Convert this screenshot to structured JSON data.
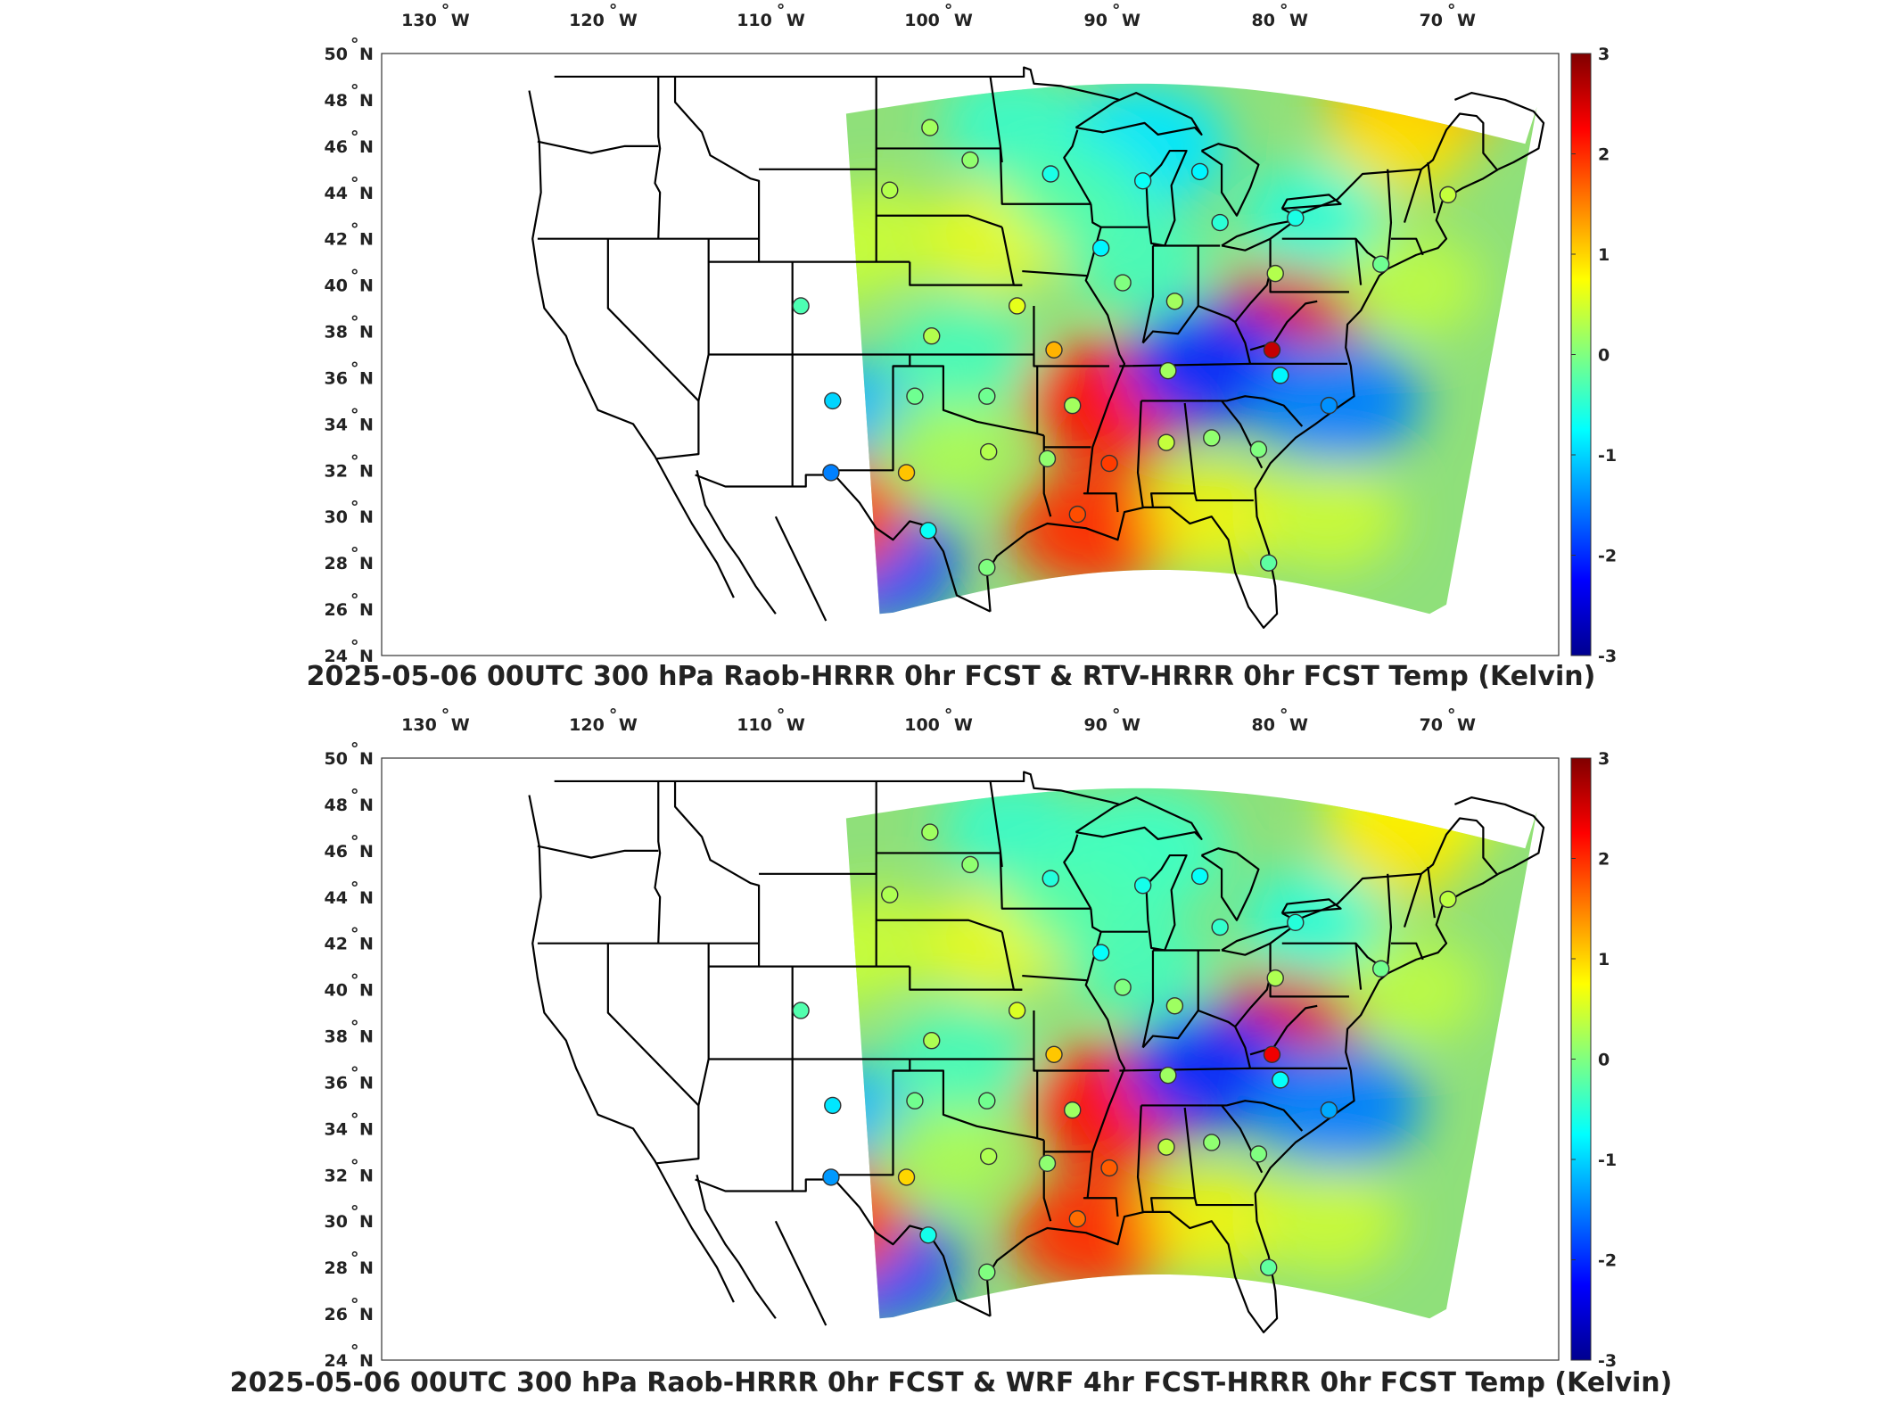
{
  "panels": [
    {
      "title": "2025-05-06 00UTC 300 hPa Raob-HRRR 0hr FCST & RTV-HRRR 0hr FCST Temp (Kelvin)",
      "top": 0,
      "variant": "a"
    },
    {
      "title": "2025-05-06 00UTC 300 hPa Raob-HRRR 0hr FCST & WRF 4hr FCST-HRRR 0hr FCST Temp (Kelvin)",
      "top": 790,
      "variant": "b"
    }
  ],
  "lon_ticks": [
    {
      "deg": "130",
      "hemi": "W"
    },
    {
      "deg": "120",
      "hemi": "W"
    },
    {
      "deg": "110",
      "hemi": "W"
    },
    {
      "deg": "100",
      "hemi": "W"
    },
    {
      "deg": "90",
      "hemi": "W"
    },
    {
      "deg": "80",
      "hemi": "W"
    },
    {
      "deg": "70",
      "hemi": "W"
    }
  ],
  "lat_ticks": [
    {
      "deg": "50",
      "hemi": "N"
    },
    {
      "deg": "48",
      "hemi": "N"
    },
    {
      "deg": "46",
      "hemi": "N"
    },
    {
      "deg": "44",
      "hemi": "N"
    },
    {
      "deg": "42",
      "hemi": "N"
    },
    {
      "deg": "40",
      "hemi": "N"
    },
    {
      "deg": "38",
      "hemi": "N"
    },
    {
      "deg": "36",
      "hemi": "N"
    },
    {
      "deg": "34",
      "hemi": "N"
    },
    {
      "deg": "32",
      "hemi": "N"
    },
    {
      "deg": "30",
      "hemi": "N"
    },
    {
      "deg": "28",
      "hemi": "N"
    },
    {
      "deg": "26",
      "hemi": "N"
    },
    {
      "deg": "24",
      "hemi": "N"
    }
  ],
  "colorbar": {
    "ticks": [
      "3",
      "2",
      "1",
      "0",
      "-1",
      "-2",
      "-3"
    ],
    "range": [
      -3,
      3
    ],
    "colormap": [
      "#00008f",
      "#0000ff",
      "#0080ff",
      "#00ffff",
      "#80ff80",
      "#ffff00",
      "#ff8000",
      "#ff0000",
      "#800000"
    ]
  },
  "field": {
    "base_color": "#8fe07a",
    "anomalies": [
      {
        "name": "mississippi-valley-warm",
        "lon": -90,
        "lat": 35,
        "value": 2.2
      },
      {
        "name": "gulf-coast-warm",
        "lon": -91,
        "lat": 29.5,
        "value": 2.0
      },
      {
        "name": "virginia-warm",
        "lon": -80,
        "lat": 38,
        "value": 2.4
      },
      {
        "name": "appalachia-cold",
        "lon": -84,
        "lat": 36.5,
        "value": -2.0
      },
      {
        "name": "mid-atlantic-coast-cold",
        "lon": -76.5,
        "lat": 35,
        "value": -1.5
      },
      {
        "name": "new-mexico-cold",
        "lon": -106,
        "lat": 34,
        "value": -1.2
      },
      {
        "name": "west-texas-cold",
        "lon": -104,
        "lat": 28,
        "value": -1.8
      },
      {
        "name": "texas-big-bend-warm",
        "lon": -107,
        "lat": 30,
        "value": 1.8
      },
      {
        "name": "great-lakes-cool",
        "lon": -88,
        "lat": 46,
        "value": -0.9
      },
      {
        "name": "quebec-warm",
        "lon": -72,
        "lat": 48,
        "value": 1.2
      }
    ]
  },
  "stations": [
    {
      "lon": -100.8,
      "lat": 46.8,
      "value": 0.2
    },
    {
      "lon": -98.4,
      "lat": 45.4,
      "value": 0.1
    },
    {
      "lon": -103.2,
      "lat": 44.1,
      "value": 0.3
    },
    {
      "lon": -93.6,
      "lat": 44.8,
      "value": -0.6
    },
    {
      "lon": -88.1,
      "lat": 44.5,
      "value": -0.7
    },
    {
      "lon": -84.7,
      "lat": 44.9,
      "value": -0.8
    },
    {
      "lon": -69.9,
      "lat": 43.9,
      "value": 0.4
    },
    {
      "lon": -83.5,
      "lat": 42.7,
      "value": -0.5
    },
    {
      "lon": -79.0,
      "lat": 42.9,
      "value": -0.6
    },
    {
      "lon": -90.6,
      "lat": 41.6,
      "value": -0.8
    },
    {
      "lon": -89.3,
      "lat": 40.1,
      "value": 0.0
    },
    {
      "lon": -80.2,
      "lat": 40.5,
      "value": 0.3
    },
    {
      "lon": -86.2,
      "lat": 39.3,
      "value": 0.2
    },
    {
      "lon": -73.9,
      "lat": 40.9,
      "value": -0.1
    },
    {
      "lon": -108.5,
      "lat": 39.1,
      "value": -0.3
    },
    {
      "lon": -95.6,
      "lat": 39.1,
      "value": 0.6
    },
    {
      "lon": -100.7,
      "lat": 37.8,
      "value": 0.3
    },
    {
      "lon": -93.4,
      "lat": 37.2,
      "value": 1.2
    },
    {
      "lon": -80.4,
      "lat": 37.2,
      "value": 2.6
    },
    {
      "lon": -86.6,
      "lat": 36.3,
      "value": 0.2
    },
    {
      "lon": -79.9,
      "lat": 36.1,
      "value": -0.8
    },
    {
      "lon": -106.6,
      "lat": 35.0,
      "value": -1.0
    },
    {
      "lon": -101.7,
      "lat": 35.2,
      "value": -0.1
    },
    {
      "lon": -97.4,
      "lat": 35.2,
      "value": -0.1
    },
    {
      "lon": -92.3,
      "lat": 34.8,
      "value": 0.2
    },
    {
      "lon": -77.0,
      "lat": 34.8,
      "value": -1.4
    },
    {
      "lon": -97.3,
      "lat": 32.8,
      "value": 0.3
    },
    {
      "lon": -93.8,
      "lat": 32.5,
      "value": 0.1
    },
    {
      "lon": -90.1,
      "lat": 32.3,
      "value": 1.9
    },
    {
      "lon": -86.7,
      "lat": 33.2,
      "value": 0.4
    },
    {
      "lon": -84.0,
      "lat": 33.4,
      "value": 0.1
    },
    {
      "lon": -81.2,
      "lat": 32.9,
      "value": 0.0
    },
    {
      "lon": -106.7,
      "lat": 31.9,
      "value": -1.5
    },
    {
      "lon": -102.2,
      "lat": 31.9,
      "value": 1.1
    },
    {
      "lon": -92.0,
      "lat": 30.1,
      "value": 1.8
    },
    {
      "lon": -100.9,
      "lat": 29.4,
      "value": -0.7
    },
    {
      "lon": -97.4,
      "lat": 27.8,
      "value": 0.0
    },
    {
      "lon": -80.6,
      "lat": 28.0,
      "value": -0.2
    }
  ]
}
